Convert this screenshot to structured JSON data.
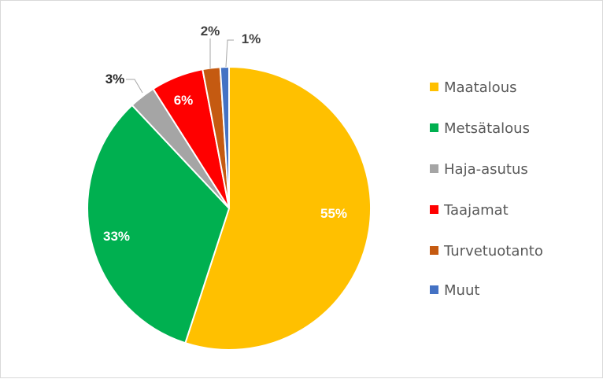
{
  "chart_data": {
    "type": "pie",
    "title": "",
    "categories": [
      "Maatalous",
      "Metsätalous",
      "Haja-asutus",
      "Taajamat",
      "Turvetuotanto",
      "Muut"
    ],
    "values": [
      55,
      33,
      3,
      6,
      2,
      1
    ],
    "labels": [
      "55%",
      "33%",
      "3%",
      "6%",
      "2%",
      "1%"
    ],
    "colors": [
      "#FFC000",
      "#00B050",
      "#A5A5A5",
      "#FF0000",
      "#C55A11",
      "#4472C4"
    ],
    "label_colors": [
      "#ffffff",
      "#ffffff",
      "#262626",
      "#ffffff",
      "#404040",
      "#404040"
    ],
    "legend_position": "right"
  }
}
